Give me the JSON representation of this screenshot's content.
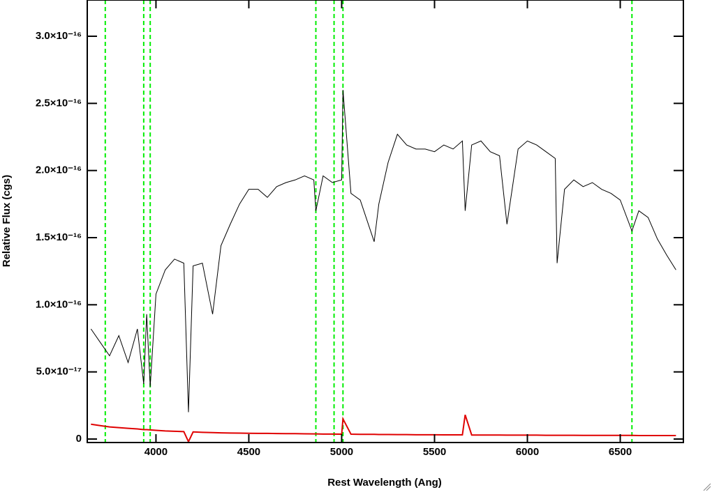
{
  "chart_data": {
    "type": "line",
    "xlabel": "Rest Wavelength (Ang)",
    "ylabel": "Relative Flux (cgs)",
    "x": [
      3650,
      3700,
      3750,
      3800,
      3850,
      3900,
      3934,
      3950,
      3969,
      4000,
      4050,
      4100,
      4150,
      4175,
      4200,
      4250,
      4305,
      4350,
      4400,
      4450,
      4500,
      4550,
      4600,
      4650,
      4700,
      4750,
      4800,
      4850,
      4861,
      4900,
      4950,
      5000,
      5007,
      5050,
      5100,
      5175,
      5200,
      5250,
      5300,
      5350,
      5400,
      5450,
      5500,
      5550,
      5600,
      5650,
      5665,
      5700,
      5750,
      5800,
      5850,
      5890,
      5950,
      6000,
      6050,
      6100,
      6150,
      6160,
      6200,
      6250,
      6300,
      6350,
      6400,
      6450,
      6500,
      6563,
      6600,
      6650,
      6700,
      6750,
      6800
    ],
    "series": [
      {
        "color": "#000000",
        "values": [
          8.2e-17,
          7.2e-17,
          6.2e-17,
          7.7e-17,
          5.7e-17,
          8.2e-17,
          4.1e-17,
          9.3e-17,
          3.9e-17,
          1.08e-16,
          1.26e-16,
          1.34e-16,
          1.31e-16,
          2e-17,
          1.29e-16,
          1.31e-16,
          9.3e-17,
          1.44e-16,
          1.6e-16,
          1.75e-16,
          1.86e-16,
          1.86e-16,
          1.8e-16,
          1.88e-16,
          1.91e-16,
          1.93e-16,
          1.96e-16,
          1.93e-16,
          1.7e-16,
          1.96e-16,
          1.91e-16,
          1.93e-16,
          2.6e-16,
          1.83e-16,
          1.78e-16,
          1.47e-16,
          1.75e-16,
          2.06e-16,
          2.27e-16,
          2.19e-16,
          2.16e-16,
          2.16e-16,
          2.14e-16,
          2.19e-16,
          2.16e-16,
          2.22e-16,
          1.7e-16,
          2.19e-16,
          2.22e-16,
          2.14e-16,
          2.11e-16,
          1.6e-16,
          2.16e-16,
          2.22e-16,
          2.19e-16,
          2.14e-16,
          2.09e-16,
          1.31e-16,
          1.86e-16,
          1.93e-16,
          1.88e-16,
          1.91e-16,
          1.86e-16,
          1.83e-16,
          1.78e-16,
          1.55e-16,
          1.7e-16,
          1.65e-16,
          1.49e-16,
          1.37e-16,
          1.26e-16
        ]
      },
      {
        "color": "#e00000",
        "values": [
          1.1e-17,
          1e-17,
          9e-18,
          8.5e-18,
          8e-18,
          7.5e-18,
          7e-18,
          7e-18,
          6.8e-18,
          6.5e-18,
          6e-18,
          5.8e-18,
          5.5e-18,
          -2e-18,
          5.3e-18,
          5e-18,
          4.8e-18,
          4.6e-18,
          4.5e-18,
          4.4e-18,
          4.3e-18,
          4.2e-18,
          4.2e-18,
          4.1e-18,
          4e-18,
          4e-18,
          3.9e-18,
          3.8e-18,
          3.8e-18,
          3.7e-18,
          3.7e-18,
          3.6e-18,
          1.5e-17,
          3.6e-18,
          3.5e-18,
          3.5e-18,
          3.4e-18,
          3.4e-18,
          3.3e-18,
          3.3e-18,
          3.2e-18,
          3.2e-18,
          3.2e-18,
          3.1e-18,
          3.1e-18,
          3.1e-18,
          1.8e-17,
          3e-18,
          3e-18,
          3e-18,
          3e-18,
          2.9e-18,
          2.9e-18,
          2.9e-18,
          2.9e-18,
          2.8e-18,
          2.8e-18,
          2.8e-18,
          2.8e-18,
          2.8e-18,
          2.7e-18,
          2.7e-18,
          2.7e-18,
          2.7e-18,
          2.7e-18,
          2.7e-18,
          2.6e-18,
          2.6e-18,
          2.6e-18,
          2.6e-18,
          2.6e-18
        ]
      }
    ],
    "reference_lines": {
      "color": "#00ee00",
      "x": [
        3727,
        3934,
        3969,
        4861,
        4959,
        5007,
        6563
      ]
    },
    "xlim": [
      3630,
      6840
    ],
    "ylim": [
      -2.6e-18,
      3.27e-16
    ],
    "xticks": [
      4000,
      4500,
      5000,
      5500,
      6000,
      6500
    ],
    "yticks": [
      0,
      {
        "value": 5e-17,
        "label": "5.0×10⁻¹⁷"
      },
      {
        "value": 1e-16,
        "label": "1.0×10⁻¹⁶"
      },
      {
        "value": 1.5e-16,
        "label": "1.5×10⁻¹⁶"
      },
      {
        "value": 2e-16,
        "label": "2.0×10⁻¹⁶"
      },
      {
        "value": 2.5e-16,
        "label": "2.5×10⁻¹⁶"
      },
      {
        "value": 3e-16,
        "label": "3.0×10⁻¹⁶"
      }
    ]
  }
}
